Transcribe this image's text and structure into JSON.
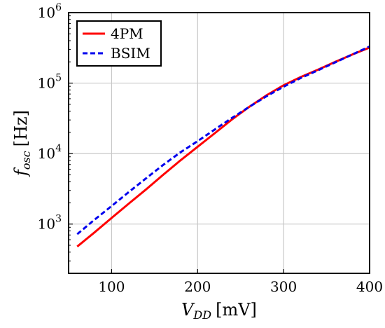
{
  "chart_data": {
    "type": "line",
    "title": "",
    "xlabel": "V_DD [mV]",
    "ylabel": "f_osc [Hz]",
    "xlim": [
      50,
      400
    ],
    "ylim": [
      200,
      1000000
    ],
    "yscale": "log",
    "grid": true,
    "legend_position": "top-left",
    "x_ticks": [
      "100",
      "200",
      "300",
      "400"
    ],
    "y_ticks": [
      {
        "value": 1000,
        "base": "10",
        "exp": "3"
      },
      {
        "value": 10000,
        "base": "10",
        "exp": "4"
      },
      {
        "value": 100000,
        "base": "10",
        "exp": "5"
      },
      {
        "value": 1000000,
        "base": "10",
        "exp": "6"
      }
    ],
    "series": [
      {
        "name": "4PM",
        "color": "#ff0000",
        "style": "solid",
        "x": [
          60,
          80,
          100,
          120,
          140,
          160,
          180,
          200,
          220,
          240,
          260,
          280,
          300,
          320,
          340,
          360,
          380,
          400
        ],
        "y": [
          480,
          760,
          1220,
          1950,
          3100,
          5000,
          8000,
          12500,
          19500,
          30500,
          46000,
          67000,
          93000,
          122000,
          155000,
          200000,
          255000,
          320000
        ]
      },
      {
        "name": "BSIM",
        "color": "#0000ee",
        "style": "dashed",
        "x": [
          60,
          80,
          100,
          120,
          140,
          160,
          180,
          200,
          220,
          240,
          260,
          280,
          300,
          320,
          340,
          360,
          380,
          400
        ],
        "y": [
          720,
          1150,
          1800,
          2850,
          4450,
          6900,
          10400,
          15000,
          22000,
          32000,
          46000,
          65000,
          89000,
          118000,
          152000,
          197000,
          255000,
          330000
        ]
      }
    ]
  }
}
